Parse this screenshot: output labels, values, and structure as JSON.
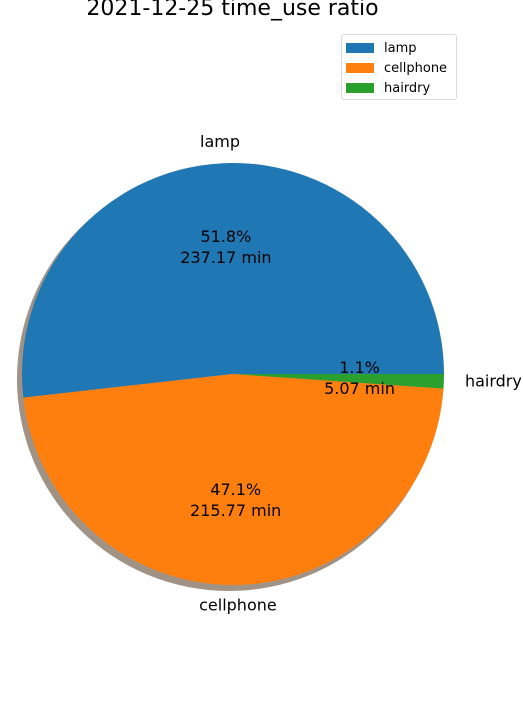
{
  "chart_data": {
    "type": "pie",
    "title": "2021-12-25 time_use ratio",
    "legend_position": "top-right",
    "shadow": true,
    "labels": [
      "lamp",
      "cellphone",
      "hairdry"
    ],
    "values": [
      237.17,
      215.77,
      5.07
    ],
    "units": "min",
    "percent_labels": [
      "51.8%",
      "47.1%",
      "1.1%"
    ],
    "value_labels": [
      "237.17 min",
      "215.77 min",
      "5.07 min"
    ],
    "colors": [
      "#1f77b4",
      "#ff7f0e",
      "#2ca02c"
    ]
  }
}
